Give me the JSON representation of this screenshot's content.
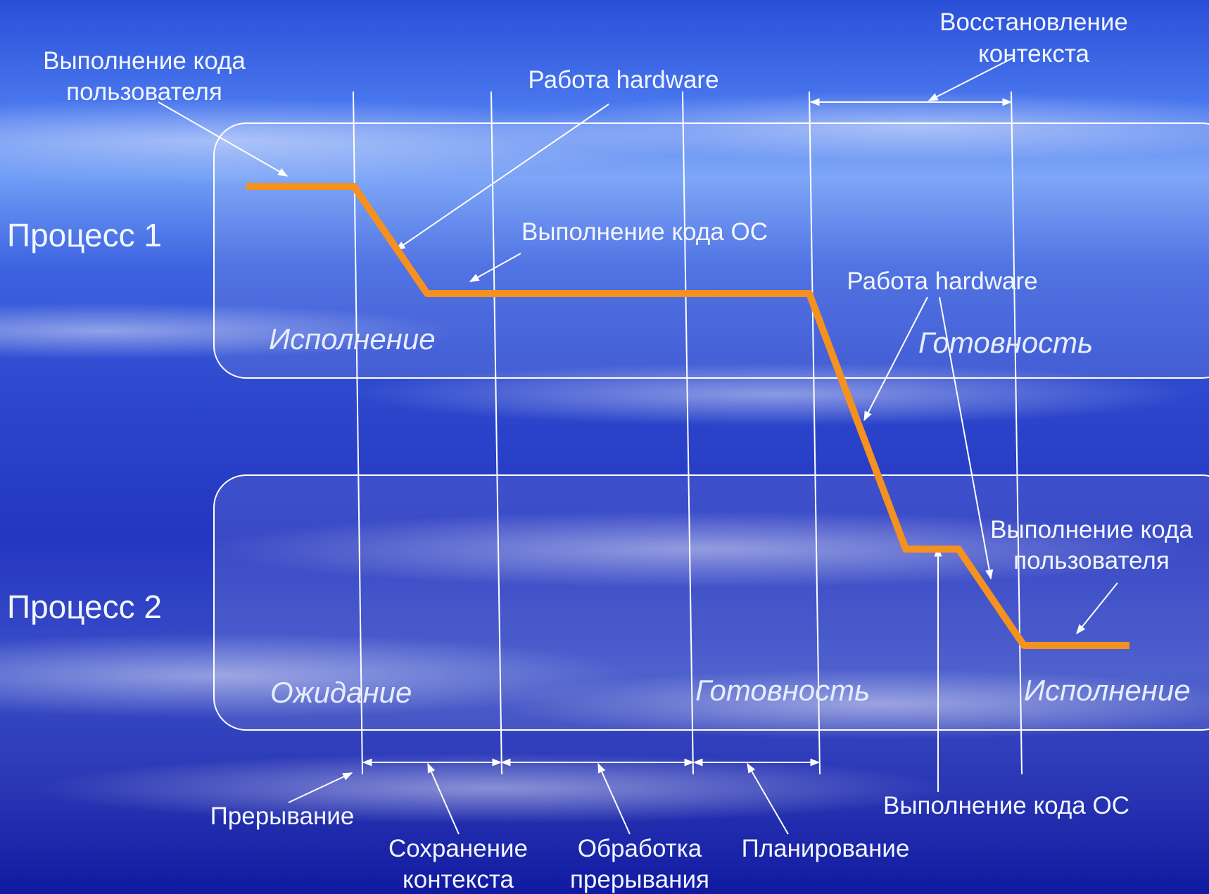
{
  "processes": {
    "p1": "Процесс 1",
    "p2": "Процесс 2"
  },
  "states": {
    "p1_running": "Исполнение",
    "p1_ready": "Готовность",
    "p2_waiting": "Ожидание",
    "p2_ready": "Готовность",
    "p2_running": "Исполнение"
  },
  "labels": {
    "user_code_1": [
      "Выполнение кода",
      "пользователя"
    ],
    "hardware_1": "Работа hardware",
    "restore_context": [
      "Восстановление",
      "контекста"
    ],
    "os_code_1": "Выполнение кода ОС",
    "hardware_2": "Работа hardware",
    "user_code_2": [
      "Выполнение кода",
      "пользователя"
    ],
    "os_code_2": "Выполнение кода ОС",
    "interrupt": "Прерывание",
    "save_context": [
      "Сохранение",
      "контекста"
    ],
    "interrupt_handling": [
      "Обработка",
      "прерывания"
    ],
    "scheduling": "Планирование"
  },
  "colors": {
    "timeline": "#f5911e",
    "lines": "#ffffff",
    "background_top": "#3a66e8",
    "background_bottom": "#0d1aa8"
  }
}
